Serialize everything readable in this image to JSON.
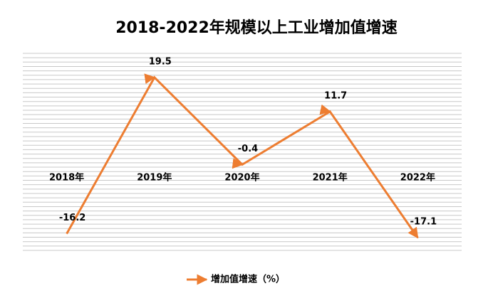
{
  "chart_data": {
    "type": "line",
    "title": "2018-2022年规模以上工业增加值增速",
    "categories": [
      "2018年",
      "2019年",
      "2020年",
      "2021年",
      "2022年"
    ],
    "series": [
      {
        "name": "增加值增速（%）",
        "color": "#ED7D31",
        "values": [
          -16.2,
          19.5,
          -0.4,
          11.7,
          -17.1
        ]
      }
    ],
    "ylim": [
      -20,
      25
    ],
    "yticks": [
      -20,
      -19,
      -18,
      -17,
      -16,
      -15,
      -14,
      -13,
      -12,
      -11,
      -10,
      -9,
      -8,
      -7,
      -6,
      -5,
      -4,
      -3,
      -2,
      -1,
      0,
      1,
      2,
      3,
      4,
      5,
      6,
      7,
      8,
      9,
      10,
      11,
      12,
      13,
      14,
      15,
      16,
      17,
      18,
      19,
      20,
      21,
      22,
      23,
      24,
      25
    ],
    "grid": true,
    "show_tick_labels": false,
    "legend": "bottom"
  }
}
